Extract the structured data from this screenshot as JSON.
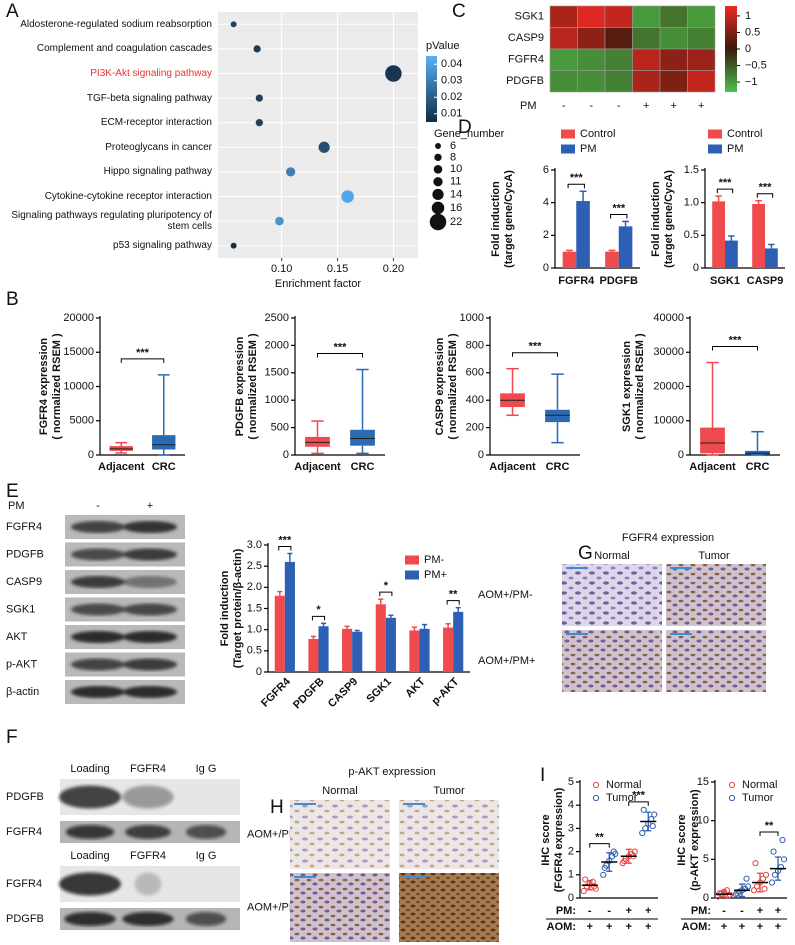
{
  "panel_labels": [
    "A",
    "B",
    "C",
    "D",
    "E",
    "F",
    "G",
    "H",
    "I"
  ],
  "chart_data": [
    {
      "type": "dotplot",
      "categories": [
        "Aldosterone-regulated sodium reabsorption",
        "Complement and coagulation cascades",
        "PI3K-Akt signaling pathway",
        "TGF-beta signaling pathway",
        "ECM-receptor interaction",
        "Proteoglycans in cancer",
        "Hippo signaling pathway",
        "Cytokine-cytokine receptor interaction",
        "Signaling pathways regulating pluripotency of stem cells",
        "p53 signaling pathway"
      ],
      "values": [
        0.057,
        0.078,
        0.2,
        0.08,
        0.08,
        0.138,
        0.108,
        0.159,
        0.098,
        0.057
      ],
      "pvalues": [
        0.012,
        0.01,
        0.008,
        0.011,
        0.012,
        0.015,
        0.03,
        0.042,
        0.036,
        0.006
      ],
      "gene_numbers": [
        6,
        8,
        22,
        8,
        8,
        14,
        11,
        16,
        10,
        6
      ],
      "xlabel": "Enrichment factor",
      "xlim": [
        0.043,
        0.222
      ],
      "xticks": [
        {
          "value": 0.1,
          "label": "0.10"
        },
        0.15,
        {
          "value": 0.2,
          "label": "0.20"
        }
      ],
      "grid": true,
      "highlight": 2,
      "highlight_color": "#e8352f",
      "color_legend": {
        "title": "pValue",
        "lim": [
          0.005,
          0.045
        ],
        "ticks": [
          0.04,
          0.03,
          0.02,
          0.01
        ],
        "colors": [
          "#132b43",
          "#56b1f7"
        ]
      },
      "size_legend": {
        "title": "Gene_number",
        "values": [
          6,
          8,
          10,
          11,
          14,
          16,
          22
        ]
      }
    },
    {
      "type": "heatmap",
      "rows": [
        "SGK1",
        "CASP9",
        "FGFR4",
        "PDGFB"
      ],
      "column_title": "PM",
      "columns": [
        "-",
        "-",
        "-",
        "+",
        "+",
        "+"
      ],
      "values": [
        [
          0.8,
          1.2,
          1.0,
          -1.0,
          -0.7,
          -1.0
        ],
        [
          0.9,
          0.6,
          0.2,
          -0.7,
          -0.9,
          -0.8
        ],
        [
          -1.0,
          -0.9,
          -0.8,
          0.9,
          0.6,
          0.7
        ],
        [
          -0.9,
          -0.9,
          -0.8,
          0.8,
          0.5,
          1.0
        ]
      ],
      "colorbar": {
        "lim": [
          -1.3,
          1.3
        ],
        "ticks": [
          1,
          0.5,
          0,
          {
            "value": -0.5,
            "label": "−0.5"
          },
          {
            "value": -1,
            "label": "−1"
          }
        ],
        "colors": [
          "#4cc24a",
          "#3a1a0c",
          "#ee2a24"
        ]
      }
    },
    {
      "type": "bar",
      "categories": [
        "FGFR4",
        "PDGFB"
      ],
      "series": [
        {
          "name": "Control",
          "color": "#ef4b4c",
          "values": [
            1.0,
            1.0
          ],
          "errors": [
            0.08,
            0.08
          ]
        },
        {
          "name": "PM",
          "color": "#2d5fb5",
          "values": [
            4.1,
            2.55
          ],
          "errors": [
            0.6,
            0.3
          ]
        }
      ],
      "ylabel": [
        "Fold induction",
        "(target gene/CycA)"
      ],
      "ylim": [
        0,
        6
      ],
      "yticks": [
        0,
        2,
        4,
        6
      ],
      "significance": [
        "***",
        "***"
      ]
    },
    {
      "type": "bar",
      "categories": [
        "SGK1",
        "CASP9"
      ],
      "series": [
        {
          "name": "Control",
          "color": "#ef4b4c",
          "values": [
            1.02,
            0.98
          ],
          "errors": [
            0.08,
            0.05
          ]
        },
        {
          "name": "PM",
          "color": "#2d5fb5",
          "values": [
            0.42,
            0.3
          ],
          "errors": [
            0.07,
            0.06
          ]
        }
      ],
      "ylabel": [
        "Fold induction",
        "(target gene/CycA)"
      ],
      "ylim": [
        0,
        1.5
      ],
      "yticks": [
        0,
        0.5,
        {
          "value": 1,
          "label": "1.0"
        },
        1.5
      ],
      "significance": [
        "***",
        "***"
      ]
    },
    {
      "type": "box",
      "categories": [
        "Adjacent",
        "CRC"
      ],
      "colors": [
        "#ef4a4f",
        "#2b6bb4"
      ],
      "boxes": [
        {
          "min": 300,
          "q1": 600,
          "median": 900,
          "q3": 1300,
          "max": 1800
        },
        {
          "min": 0,
          "q1": 800,
          "median": 1500,
          "q3": 2900,
          "max": 11700
        }
      ],
      "ylabel": [
        "FGFR4 expression",
        "( normalized RSEM )"
      ],
      "ylim": [
        0,
        20000
      ],
      "yticks": [
        0,
        5000,
        10000,
        15000,
        20000
      ],
      "significance": "***"
    },
    {
      "type": "box",
      "categories": [
        "Adjacent",
        "CRC"
      ],
      "colors": [
        "#ef4a4f",
        "#2b6bb4"
      ],
      "boxes": [
        {
          "min": 30,
          "q1": 150,
          "median": 230,
          "q3": 330,
          "max": 620
        },
        {
          "min": 30,
          "q1": 170,
          "median": 300,
          "q3": 460,
          "max": 1560
        }
      ],
      "ylabel": [
        "PDGFB expression",
        "( normalized RSEM )"
      ],
      "ylim": [
        0,
        2500
      ],
      "yticks": [
        0,
        500,
        1000,
        1500,
        2000,
        2500
      ],
      "significance": "***"
    },
    {
      "type": "box",
      "categories": [
        "Adjacent",
        "CRC"
      ],
      "colors": [
        "#ef4a4f",
        "#2b6bb4"
      ],
      "boxes": [
        {
          "min": 290,
          "q1": 350,
          "median": 400,
          "q3": 450,
          "max": 630
        },
        {
          "min": 90,
          "q1": 240,
          "median": 290,
          "q3": 330,
          "max": 590
        }
      ],
      "ylabel": [
        "CASP9 expression",
        "( normalized RSEM )"
      ],
      "ylim": [
        0,
        1000
      ],
      "yticks": [
        0,
        200,
        400,
        600,
        800,
        1000
      ],
      "significance": "***"
    },
    {
      "type": "box",
      "categories": [
        "Adjacent",
        "CRC"
      ],
      "colors": [
        "#ef4a4f",
        "#2b6bb4"
      ],
      "boxes": [
        {
          "min": 0,
          "q1": 500,
          "median": 3500,
          "q3": 8000,
          "max": 27000
        },
        {
          "min": 0,
          "q1": 100,
          "median": 500,
          "q3": 1200,
          "max": 6800
        }
      ],
      "ylabel": [
        "SGK1 expression",
        "( normalized RSEM )"
      ],
      "ylim": [
        0,
        40000
      ],
      "yticks": [
        0,
        10000,
        20000,
        30000,
        40000
      ],
      "significance": "***"
    },
    {
      "type": "bar",
      "categories": [
        "FGFR4",
        "PDGFB",
        "CASP9",
        "SGK1",
        "AKT",
        "p-AKT"
      ],
      "x_label_rotation": -45,
      "series": [
        {
          "name": "PM-",
          "color": "#ef4b4c",
          "values": [
            1.8,
            0.78,
            1.02,
            1.6,
            0.98,
            1.05
          ],
          "errors": [
            0.1,
            0.06,
            0.06,
            0.12,
            0.08,
            0.09
          ]
        },
        {
          "name": "PM+",
          "color": "#2d5fb5",
          "values": [
            2.6,
            1.08,
            0.95,
            1.28,
            1.02,
            1.42
          ],
          "errors": [
            0.2,
            0.07,
            0.03,
            0.06,
            0.1,
            0.1
          ]
        }
      ],
      "ylabel": [
        "Fold induction",
        "(Target protein/β-actin)"
      ],
      "ylim": [
        0,
        3
      ],
      "yticks": [
        0,
        0.5,
        {
          "value": 1,
          "label": "1.0"
        },
        1.5,
        {
          "value": 2,
          "label": "2.0"
        },
        2.5,
        {
          "value": 3,
          "label": "3.0"
        }
      ],
      "significance": [
        "***",
        "*",
        null,
        "*",
        null,
        "**"
      ]
    },
    {
      "type": "dotgroup",
      "series": [
        {
          "name": "Normal",
          "color": "#e8423f"
        },
        {
          "name": "Tumor",
          "color": "#2f5fb0"
        }
      ],
      "groups": [
        {
          "series": 0,
          "values": [
            0.3,
            0.5,
            0.6,
            0.7,
            0.4,
            0.8,
            0.5
          ],
          "mean": 0.55,
          "sd": 0.2
        },
        {
          "series": 1,
          "values": [
            1.0,
            1.4,
            1.6,
            1.8,
            1.9,
            1.3,
            2.0
          ],
          "mean": 1.55,
          "sd": 0.4
        },
        {
          "series": 0,
          "values": [
            1.5,
            1.7,
            1.8,
            1.9,
            2.0,
            1.6,
            1.8
          ],
          "mean": 1.8,
          "sd": 0.3
        },
        {
          "series": 1,
          "values": [
            2.8,
            3.0,
            3.2,
            3.4,
            3.6,
            3.8,
            3.1
          ],
          "mean": 3.3,
          "sd": 0.4
        }
      ],
      "row_labels": [
        "PM:",
        "AOM:"
      ],
      "rows": [
        [
          "-",
          "-",
          "+",
          "+"
        ],
        [
          "+",
          "+",
          "+",
          "+"
        ]
      ],
      "ylabel": [
        "IHC score",
        "(FGFR4 expression)"
      ],
      "ylim": [
        0,
        5
      ],
      "yticks": [
        0,
        1,
        2,
        3,
        4,
        5
      ],
      "significance": [
        "**",
        "***"
      ]
    },
    {
      "type": "dotgroup",
      "series": [
        {
          "name": "Normal",
          "color": "#e8423f"
        },
        {
          "name": "Tumor",
          "color": "#2f5fb0"
        }
      ],
      "groups": [
        {
          "series": 0,
          "values": [
            0.2,
            0.5,
            0.8,
            1.0,
            0.4,
            0.6,
            0.3
          ],
          "mean": 0.5,
          "sd": 0.4
        },
        {
          "series": 1,
          "values": [
            0.5,
            0.8,
            1.0,
            1.2,
            1.5,
            0.6,
            2.5
          ],
          "mean": 1.0,
          "sd": 0.8
        },
        {
          "series": 0,
          "values": [
            1.0,
            1.5,
            2.0,
            2.5,
            3.0,
            4.5,
            1.2
          ],
          "mean": 2.0,
          "sd": 1.2
        },
        {
          "series": 1,
          "values": [
            2.0,
            3.0,
            3.5,
            4.0,
            5.0,
            6.0,
            7.5
          ],
          "mean": 3.8,
          "sd": 1.5
        }
      ],
      "row_labels": [
        "PM:",
        "AOM:"
      ],
      "rows": [
        [
          "-",
          "-",
          "+",
          "+"
        ],
        [
          "+",
          "+",
          "+",
          "+"
        ]
      ],
      "ylabel": [
        "IHC score",
        "(p-AKT expression)"
      ],
      "ylim": [
        0,
        15
      ],
      "yticks": [
        0,
        5,
        10,
        15
      ],
      "significance": [
        null,
        "**"
      ]
    }
  ],
  "blots": {
    "E": {
      "column_title": "PM",
      "columns": [
        "-",
        "+"
      ],
      "rows": [
        "FGFR4",
        "PDGFB",
        "CASP9",
        "SGK1",
        "AKT",
        "p-AKT",
        "β-actin"
      ]
    },
    "F": {
      "groups": [
        {
          "columns": [
            "Loading",
            "FGFR4",
            "Ig G"
          ],
          "rows": [
            "PDGFB",
            "FGFR4"
          ]
        },
        {
          "columns": [
            "Loading",
            "FGFR4",
            "Ig G"
          ],
          "rows": [
            "FGFR4",
            "PDGFB"
          ]
        }
      ]
    }
  },
  "ihc": {
    "G": {
      "title": "FGFR4 expression",
      "columns": [
        "Normal",
        "Tumor"
      ],
      "rows": [
        "AOM+/PM-",
        "AOM+/PM+"
      ]
    },
    "H": {
      "title": "p-AKT expression",
      "columns": [
        "Normal",
        "Tumor"
      ],
      "rows": [
        "AOM+/PM-",
        "AOM+/PM+"
      ]
    }
  }
}
